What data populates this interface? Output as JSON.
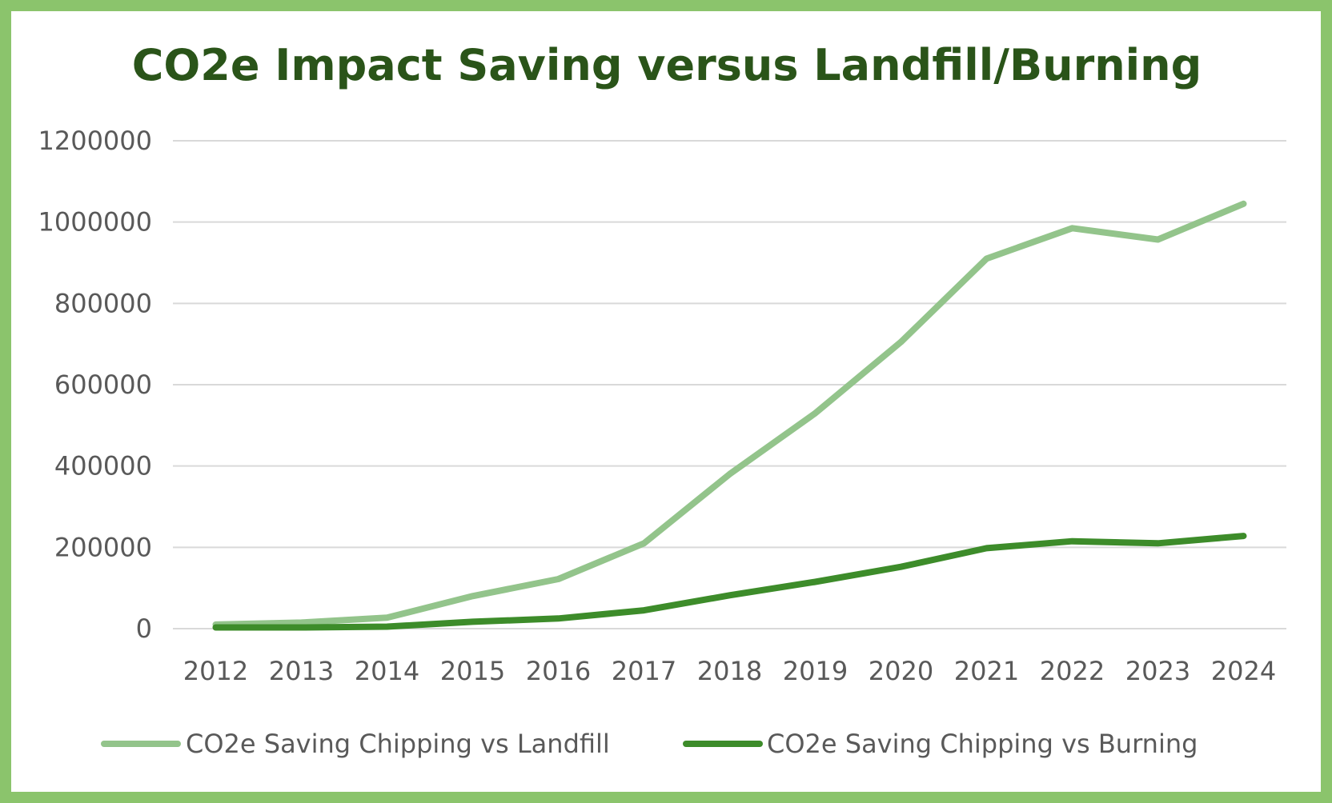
{
  "chart_data": {
    "type": "line",
    "title": "CO2e Impact Saving versus Landfill/Burning",
    "xlabel": "",
    "ylabel": "",
    "ylim": [
      0,
      1200000
    ],
    "yticks": [
      0,
      200000,
      400000,
      600000,
      800000,
      1000000,
      1200000
    ],
    "ytick_labels": [
      "0",
      "200000",
      "400000",
      "600000",
      "800000",
      "1000000",
      "1200000"
    ],
    "categories": [
      "2012",
      "2013",
      "2014",
      "2015",
      "2016",
      "2017",
      "2018",
      "2019",
      "2020",
      "2021",
      "2022",
      "2023",
      "2024"
    ],
    "grid": true,
    "legend_position": "bottom",
    "series": [
      {
        "name": "CO2e Saving Chipping vs Landfill",
        "color": "#93c48b",
        "values": [
          10000,
          15000,
          27000,
          80000,
          122000,
          210000,
          380000,
          530000,
          705000,
          910000,
          985000,
          957000,
          1045000
        ]
      },
      {
        "name": "CO2e Saving Chipping vs Burning",
        "color": "#3d8c2a",
        "values": [
          3000,
          3000,
          5000,
          17000,
          25000,
          45000,
          82000,
          115000,
          152000,
          198000,
          215000,
          210000,
          228000
        ]
      }
    ]
  }
}
